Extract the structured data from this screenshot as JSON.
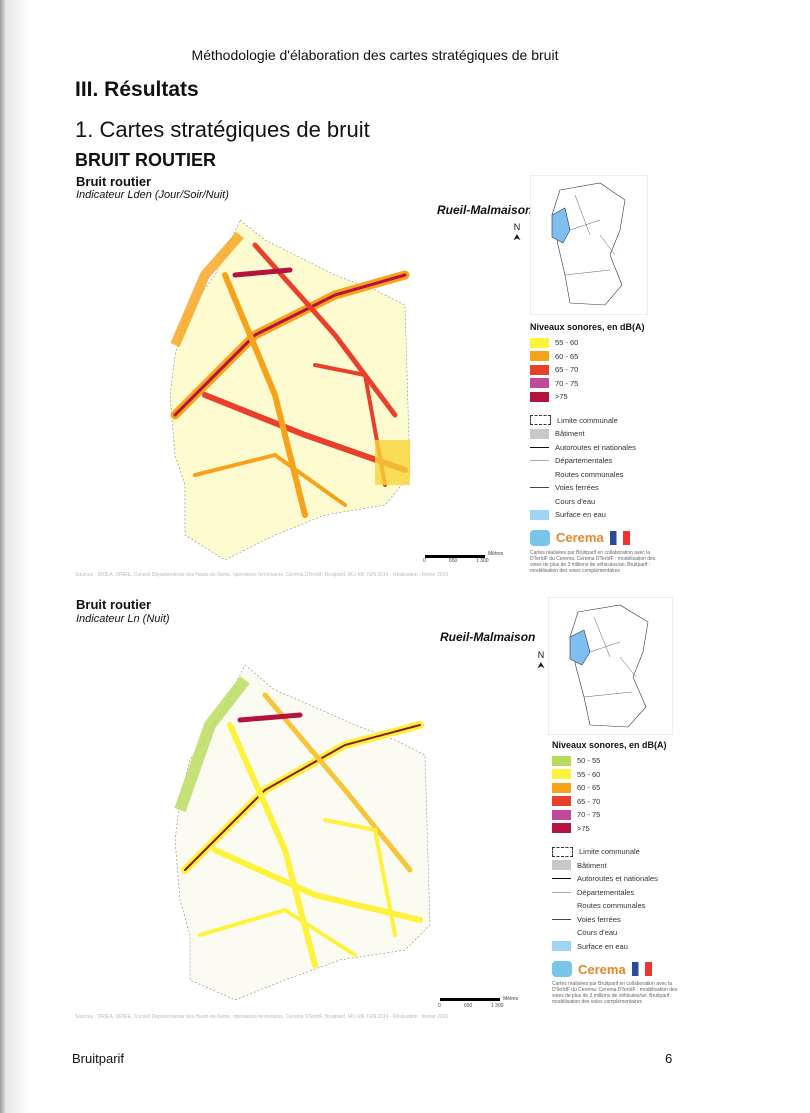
{
  "header": "Méthodologie d'élaboration des cartes stratégiques de bruit",
  "section": "III. Résultats",
  "subsection": "1. Cartes stratégiques de bruit",
  "category": "BRUIT ROUTIER",
  "maps": [
    {
      "title": "Bruit routier",
      "indicator": "Indicateur Lden (Jour/Soir/Nuit)",
      "city": "Rueil-Malmaison",
      "north": "N",
      "legend_title": "Niveaux sonores, en dB(A)",
      "classes": [
        {
          "label": "55 - 60",
          "color": "#fff23a"
        },
        {
          "label": "60 - 65",
          "color": "#f7a21b"
        },
        {
          "label": "65 - 70",
          "color": "#e8402a"
        },
        {
          "label": "70 - 75",
          "color": "#c04a9a"
        },
        {
          "label": ">75",
          "color": "#b5123f"
        }
      ]
    },
    {
      "title": "Bruit routier",
      "indicator": "Indicateur Ln (Nuit)",
      "city": "Rueil-Malmaison",
      "north": "N",
      "legend_title": "Niveaux sonores, en dB(A)",
      "classes": [
        {
          "label": "50 - 55",
          "color": "#b8dc5a"
        },
        {
          "label": "55 - 60",
          "color": "#fff23a"
        },
        {
          "label": "60 - 65",
          "color": "#f7a21b"
        },
        {
          "label": "65 - 70",
          "color": "#e8402a"
        },
        {
          "label": "70 - 75",
          "color": "#c04a9a"
        },
        {
          "label": ">75",
          "color": "#b5123f"
        }
      ]
    }
  ],
  "legend_items": [
    "Limite communale",
    "Bâtiment",
    "Autoroutes et nationales",
    "Départementales",
    "Routes communales",
    "Voies ferrées",
    "Cours d'eau",
    "Surface en eau"
  ],
  "logo_text": "Cerema",
  "credits": "Cartes réalisées par Bruitparif en collaboration avec la DTerIdF du Cerema. Cerema DTerIdF : modélisation des voies de plus de 3 millions de véhicules/an. Bruitparif : modélisation des voies complémentaires",
  "scale": {
    "unit": "Mètres",
    "ticks": [
      "0",
      "650",
      "1 300"
    ]
  },
  "sources": "Sources : DRIEA, DRIEE, Conseil Départemental des Hauts-de-Seine, opérateurs ferroviaires, Cerema DTerIdF, Bruitparif, IAU-IdF, IGN 2014 - Réalisation : février 2016",
  "footer": {
    "left": "Bruitparif",
    "page": "6"
  }
}
